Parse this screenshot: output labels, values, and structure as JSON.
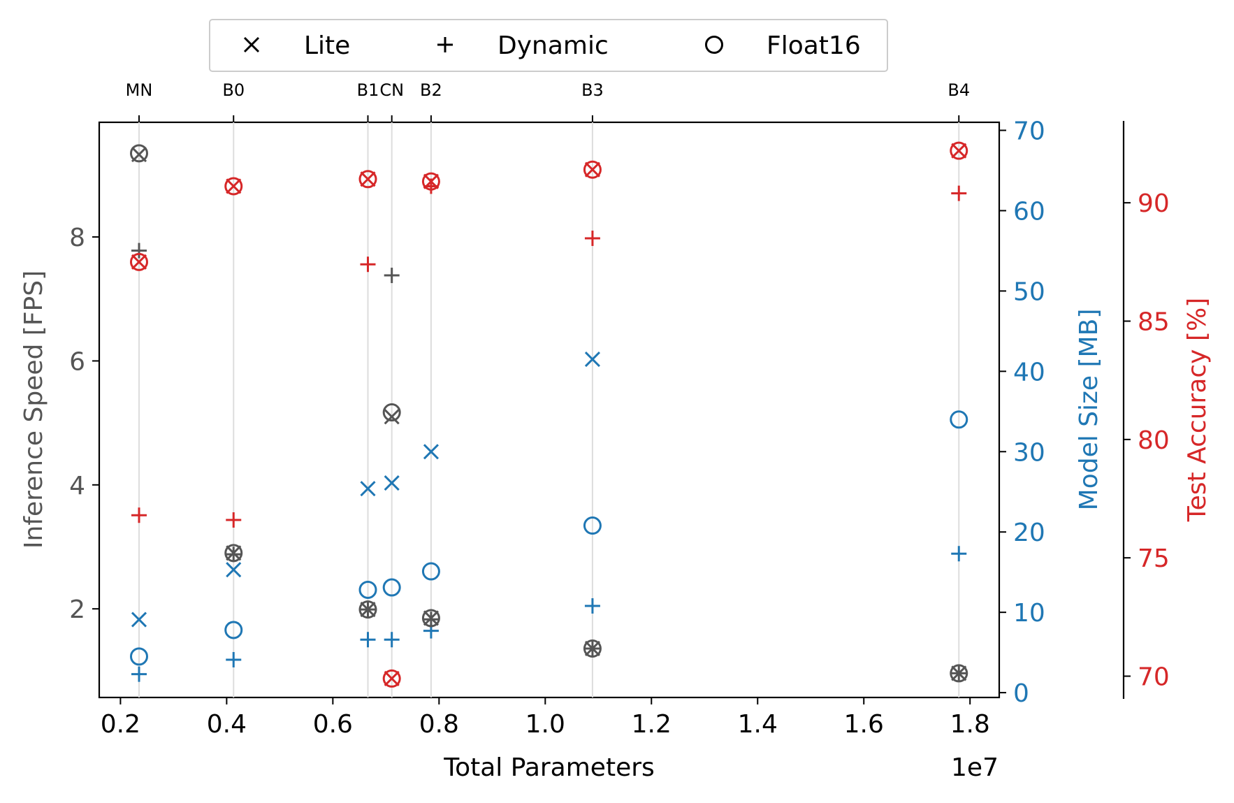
{
  "chart_data": {
    "type": "scatter",
    "xlabel": "Total Parameters",
    "x_offset_label": "1e7",
    "x_scale": 10000000,
    "xlim": [
      0.16,
      1.855
    ],
    "x_ticks": [
      0.2,
      0.4,
      0.6,
      0.8,
      1.0,
      1.2,
      1.4,
      1.6,
      1.8
    ],
    "x_tick_labels": [
      "0.2",
      "0.4",
      "0.6",
      "0.8",
      "1.0",
      "1.2",
      "1.4",
      "1.6",
      "1.8"
    ],
    "models": [
      {
        "name": "MN",
        "params": 0.235
      },
      {
        "name": "B0",
        "params": 0.413
      },
      {
        "name": "B1",
        "params": 0.666
      },
      {
        "name": "CN",
        "params": 0.711
      },
      {
        "name": "B2",
        "params": 0.785
      },
      {
        "name": "B3",
        "params": 1.089
      },
      {
        "name": "B4",
        "params": 1.779
      }
    ],
    "axes": {
      "speed": {
        "label": "Inference Speed [FPS]",
        "color": "#555555",
        "ylim": [
          0.57,
          9.85
        ],
        "ticks": [
          2,
          4,
          6,
          8
        ],
        "tick_labels": [
          "2",
          "4",
          "6",
          "8"
        ]
      },
      "size": {
        "label": "Model Size [MB]",
        "color": "#1f77b4",
        "ylim": [
          -0.6,
          71.0
        ],
        "ticks": [
          0,
          10,
          20,
          30,
          40,
          50,
          60,
          70
        ],
        "tick_labels": [
          "0",
          "10",
          "20",
          "30",
          "40",
          "50",
          "60",
          "70"
        ]
      },
      "accuracy": {
        "label": "Test Accuracy [%]",
        "color": "#d62728",
        "ylim": [
          69.1,
          93.4
        ],
        "ticks": [
          70,
          75,
          80,
          85,
          90
        ],
        "tick_labels": [
          "70",
          "75",
          "80",
          "85",
          "90"
        ]
      }
    },
    "legend": {
      "position": "top-center",
      "entries": [
        {
          "label": "Lite",
          "marker": "x"
        },
        {
          "label": "Dynamic",
          "marker": "+"
        },
        {
          "label": "Float16",
          "marker": "o"
        }
      ]
    },
    "series": [
      {
        "metric": "speed",
        "variant": "Lite",
        "marker": "x",
        "values": [
          9.33,
          2.9,
          1.99,
          5.1,
          1.85,
          1.36,
          0.96
        ]
      },
      {
        "metric": "speed",
        "variant": "Dynamic",
        "marker": "+",
        "values": [
          7.78,
          2.88,
          1.99,
          7.38,
          1.83,
          1.36,
          0.96
        ]
      },
      {
        "metric": "speed",
        "variant": "Float16",
        "marker": "o",
        "values": [
          9.35,
          2.9,
          1.99,
          5.17,
          1.85,
          1.36,
          0.96
        ]
      },
      {
        "metric": "size",
        "variant": "Lite",
        "marker": "x",
        "values": [
          9.1,
          15.3,
          25.4,
          26.1,
          30.0,
          41.5,
          null
        ]
      },
      {
        "metric": "size",
        "variant": "Dynamic",
        "marker": "+",
        "values": [
          2.3,
          4.1,
          6.6,
          6.6,
          7.7,
          10.8,
          17.3
        ]
      },
      {
        "metric": "size",
        "variant": "Float16",
        "marker": "o",
        "values": [
          4.5,
          7.8,
          12.8,
          13.1,
          15.1,
          20.8,
          34.0
        ]
      },
      {
        "metric": "accuracy",
        "variant": "Lite",
        "marker": "x",
        "values": [
          87.5,
          90.7,
          91.0,
          69.9,
          90.9,
          91.4,
          92.2
        ]
      },
      {
        "metric": "accuracy",
        "variant": "Dynamic",
        "marker": "+",
        "values": [
          76.8,
          76.6,
          87.4,
          null,
          90.7,
          88.5,
          90.4
        ]
      },
      {
        "metric": "accuracy",
        "variant": "Float16",
        "marker": "o",
        "values": [
          87.5,
          90.7,
          91.0,
          69.9,
          90.9,
          91.4,
          92.2
        ]
      }
    ],
    "grid": false
  }
}
